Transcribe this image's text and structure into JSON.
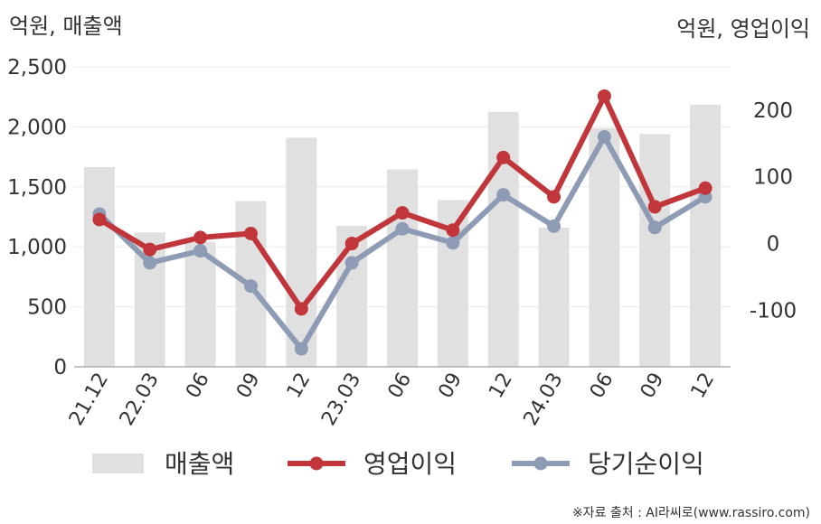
{
  "chart_data": {
    "type": "bar+line",
    "left_axis_unit": "억원, 매출액",
    "right_axis_unit": "억원, 영업이익",
    "categories": [
      "21.12",
      "22.03",
      "06",
      "09",
      "12",
      "23.03",
      "06",
      "09",
      "12",
      "24.03",
      "06",
      "09",
      "12"
    ],
    "left_ticks": [
      "0",
      "500",
      "1,000",
      "1,500",
      "2,000",
      "2,500"
    ],
    "right_ticks": [
      "-100",
      "0",
      "100",
      "200"
    ],
    "left_range": [
      0,
      2500
    ],
    "right_range": [
      -185,
      265
    ],
    "series": [
      {
        "name": "매출액",
        "kind": "bar",
        "axis": "left",
        "color": "#e0e0e0",
        "values": [
          1665,
          1120,
          1040,
          1380,
          1910,
          1175,
          1645,
          1390,
          2125,
          1160,
          1990,
          1940,
          2185
        ]
      },
      {
        "name": "영업이익",
        "kind": "line",
        "axis": "right",
        "color": "#c0363a",
        "values": [
          36,
          -9,
          9,
          15,
          -98,
          0,
          46,
          20,
          129,
          70,
          221,
          55,
          83
        ]
      },
      {
        "name": "당기순이익",
        "kind": "line",
        "axis": "right",
        "color": "#8e9bb5",
        "values": [
          44,
          -29,
          -11,
          -64,
          -158,
          -29,
          22,
          1,
          73,
          26,
          160,
          24,
          70
        ]
      }
    ],
    "grid": true,
    "legend_position": "bottom"
  },
  "source_note": "※자료 출처 : AI라씨로(www.rassiro.com)"
}
